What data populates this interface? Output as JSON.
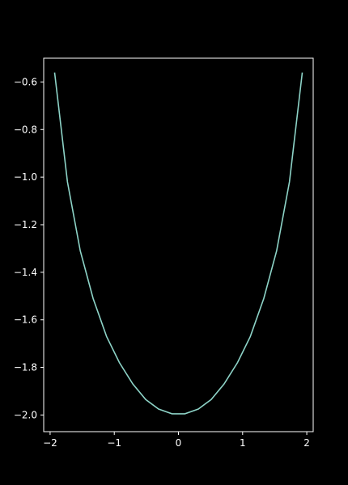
{
  "chart_data": {
    "type": "line",
    "title": "",
    "xlabel": "",
    "ylabel": "",
    "xlim": [
      -2.1,
      2.1
    ],
    "ylim": [
      -2.07,
      -0.5
    ],
    "grid": false,
    "xticks": [
      -2,
      -1,
      0,
      1,
      2
    ],
    "xtick_labels": [
      "−2",
      "−1",
      "0",
      "1",
      "2"
    ],
    "yticks": [
      -2.0,
      -1.8,
      -1.6,
      -1.4,
      -1.2,
      -1.0,
      -0.8,
      -0.6
    ],
    "ytick_labels": [
      "−2.0",
      "−1.8",
      "−1.6",
      "−1.4",
      "−1.2",
      "−1.0",
      "−0.8",
      "−0.6"
    ],
    "series": [
      {
        "color": "#8dd3c7",
        "x": [
          -1.93,
          -1.73,
          -1.53,
          -1.33,
          -1.12,
          -0.92,
          -0.71,
          -0.51,
          -0.31,
          -0.1,
          0.1,
          0.31,
          0.51,
          0.71,
          0.92,
          1.12,
          1.33,
          1.53,
          1.73,
          1.93
        ],
        "y": [
          -0.56,
          -1.02,
          -1.31,
          -1.51,
          -1.67,
          -1.78,
          -1.87,
          -1.935,
          -1.975,
          -1.995,
          -1.995,
          -1.975,
          -1.935,
          -1.87,
          -1.78,
          -1.67,
          -1.51,
          -1.31,
          -1.02,
          -0.56
        ]
      }
    ]
  },
  "colors": {
    "background": "#000000",
    "axes": "#ffffff",
    "text": "#ffffff"
  }
}
